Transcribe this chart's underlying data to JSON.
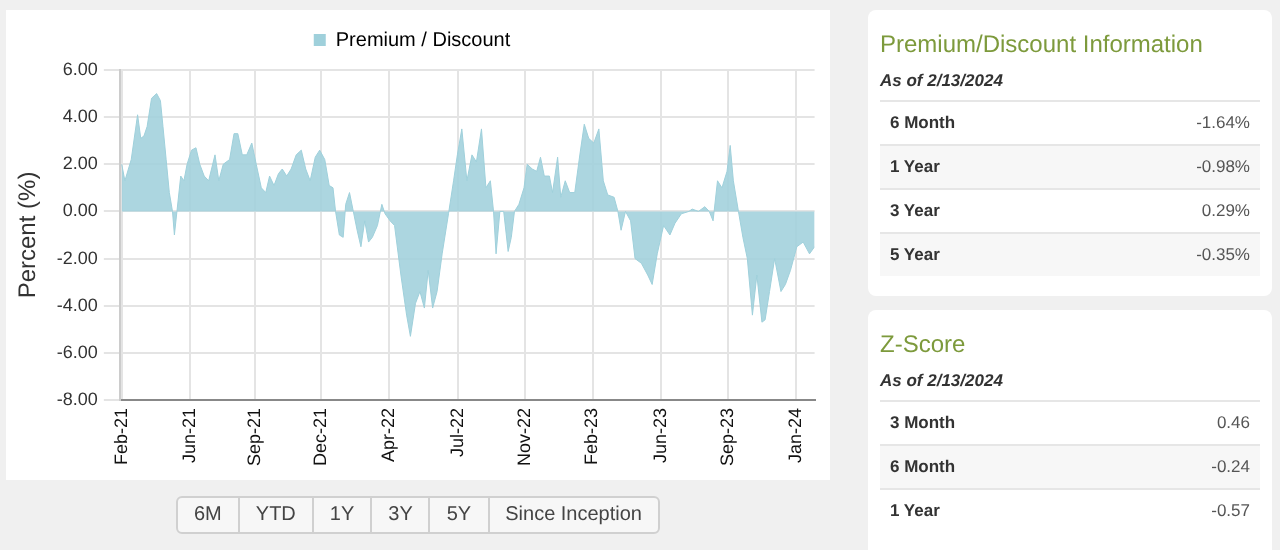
{
  "chart_data": [
    {
      "type": "area",
      "ylabel": "Percent (%)",
      "legend": "top",
      "grid": true,
      "marker": "none",
      "xlim": [
        "2021-02-13",
        "2024-02-13"
      ],
      "xticks": [
        {
          "value": "2021-02-16",
          "label": "Feb-21"
        },
        {
          "value": "2021-06-04",
          "label": "Jun-21"
        },
        {
          "value": "2021-09-14",
          "label": "Sep-21"
        },
        {
          "value": "2021-12-27",
          "label": "Dec-21"
        },
        {
          "value": "2022-04-14",
          "label": "Apr-22"
        },
        {
          "value": "2022-07-31",
          "label": "Jul-22"
        },
        {
          "value": "2022-11-13",
          "label": "Nov-22"
        },
        {
          "value": "2023-02-28",
          "label": "Feb-23"
        },
        {
          "value": "2023-06-16",
          "label": "Jun-23"
        },
        {
          "value": "2023-09-29",
          "label": "Sep-23"
        },
        {
          "value": "2024-01-15",
          "label": "Jan-24"
        }
      ],
      "ylim": [
        -8,
        6
      ],
      "yticks": [
        {
          "value": -8,
          "label": "-8.00"
        },
        {
          "value": -6,
          "label": "-6.00"
        },
        {
          "value": -4,
          "label": "-4.00"
        },
        {
          "value": -2,
          "label": "-2.00"
        },
        {
          "value": 0,
          "label": "0.00"
        },
        {
          "value": 2,
          "label": "2.00"
        },
        {
          "value": 4,
          "label": "4.00"
        },
        {
          "value": 6,
          "label": "6.00"
        }
      ],
      "x": [
        "2021-02-16",
        "2021-02-21",
        "2021-03-03",
        "2021-03-13",
        "2021-03-18",
        "2021-03-23",
        "2021-03-28",
        "2021-04-04",
        "2021-04-12",
        "2021-04-18",
        "2021-04-22",
        "2021-04-27",
        "2021-05-02",
        "2021-05-07",
        "2021-05-10",
        "2021-05-14",
        "2021-05-20",
        "2021-05-25",
        "2021-05-30",
        "2021-06-06",
        "2021-06-13",
        "2021-06-19",
        "2021-06-26",
        "2021-07-03",
        "2021-07-13",
        "2021-07-19",
        "2021-07-26",
        "2021-08-05",
        "2021-08-12",
        "2021-08-18",
        "2021-08-25",
        "2021-09-01",
        "2021-09-09",
        "2021-09-16",
        "2021-09-24",
        "2021-10-01",
        "2021-10-07",
        "2021-10-14",
        "2021-10-21",
        "2021-10-27",
        "2021-11-03",
        "2021-11-10",
        "2021-11-18",
        "2021-11-26",
        "2021-12-03",
        "2021-12-10",
        "2021-12-18",
        "2021-12-25",
        "2022-01-02",
        "2022-01-09",
        "2022-01-15",
        "2022-01-19",
        "2022-01-25",
        "2022-01-31",
        "2022-02-04",
        "2022-02-10",
        "2022-02-16",
        "2022-02-22",
        "2022-02-28",
        "2022-03-06",
        "2022-03-12",
        "2022-03-18",
        "2022-03-26",
        "2022-04-02",
        "2022-04-07",
        "2022-04-15",
        "2022-04-22",
        "2022-05-02",
        "2022-05-11",
        "2022-05-17",
        "2022-05-25",
        "2022-06-01",
        "2022-06-08",
        "2022-06-14",
        "2022-06-21",
        "2022-06-28",
        "2022-07-06",
        "2022-07-16",
        "2022-07-24",
        "2022-07-30",
        "2022-08-06",
        "2022-08-14",
        "2022-08-22",
        "2022-08-29",
        "2022-09-06",
        "2022-09-13",
        "2022-09-20",
        "2022-09-25",
        "2022-09-29",
        "2022-10-05",
        "2022-10-11",
        "2022-10-18",
        "2022-10-23",
        "2022-10-28",
        "2022-11-04",
        "2022-11-12",
        "2022-11-17",
        "2022-11-25",
        "2022-12-02",
        "2022-12-08",
        "2022-12-14",
        "2022-12-22",
        "2022-12-27",
        "2023-01-04",
        "2023-01-09",
        "2023-01-16",
        "2023-01-23",
        "2023-01-31",
        "2023-02-08",
        "2023-02-15",
        "2023-02-22",
        "2023-03-02",
        "2023-03-10",
        "2023-03-17",
        "2023-03-24",
        "2023-04-03",
        "2023-04-09",
        "2023-04-14",
        "2023-04-21",
        "2023-04-29",
        "2023-05-06",
        "2023-05-16",
        "2023-05-26",
        "2023-06-02",
        "2023-06-10",
        "2023-06-20",
        "2023-06-30",
        "2023-07-08",
        "2023-07-18",
        "2023-07-30",
        "2023-08-04",
        "2023-08-14",
        "2023-08-24",
        "2023-08-31",
        "2023-09-06",
        "2023-09-13",
        "2023-09-20",
        "2023-09-28",
        "2023-10-03",
        "2023-10-08",
        "2023-10-16",
        "2023-10-23",
        "2023-10-30",
        "2023-11-07",
        "2023-11-14",
        "2023-11-22",
        "2023-11-27",
        "2023-12-04",
        "2023-12-12",
        "2023-12-22",
        "2023-12-29",
        "2024-01-06",
        "2024-01-16",
        "2024-01-26",
        "2024-02-05",
        "2024-02-13"
      ],
      "series": [
        {
          "name": "Premium / Discount",
          "color": "#9fd0db",
          "values": [
            2.0,
            1.3,
            2.2,
            4.1,
            3.1,
            3.2,
            3.6,
            4.8,
            5.0,
            4.7,
            3.6,
            2.2,
            0.8,
            0,
            -1.0,
            0,
            1.5,
            1.3,
            2.0,
            2.6,
            2.7,
            2.0,
            1.5,
            1.3,
            2.4,
            1.3,
            2.0,
            2.2,
            3.3,
            3.3,
            2.4,
            2.4,
            2.9,
            2.0,
            1.0,
            0.8,
            1.5,
            1.1,
            1.6,
            1.8,
            1.5,
            1.8,
            2.4,
            2.6,
            1.8,
            1.3,
            2.3,
            2.6,
            2.2,
            1.1,
            1.0,
            0,
            -1.0,
            -1.1,
            0.3,
            0.8,
            0,
            -0.8,
            -1.5,
            -0.4,
            -1.3,
            -1.1,
            -0.6,
            0.3,
            -0.1,
            -0.4,
            -0.6,
            -2.7,
            -4.4,
            -5.3,
            -3.9,
            -3.4,
            -4.1,
            -2.5,
            -4.1,
            -3.4,
            -1.8,
            -0.1,
            1.3,
            2.4,
            3.5,
            1.3,
            2.4,
            2.1,
            3.5,
            1.0,
            1.3,
            0,
            -1.8,
            0,
            0,
            -1.7,
            -1.1,
            0,
            0.3,
            1.0,
            2.0,
            1.8,
            1.7,
            2.3,
            1.5,
            1.5,
            0.8,
            2.3,
            0.6,
            1.3,
            0.8,
            0.8,
            2.4,
            3.7,
            3.1,
            2.9,
            3.5,
            1.3,
            0.7,
            0.6,
            0,
            -0.8,
            0,
            -0.4,
            -2.0,
            -2.2,
            -2.7,
            -3.1,
            -1.8,
            -0.6,
            -1.0,
            -0.5,
            -0.1,
            0,
            0.1,
            0,
            0.2,
            0,
            -0.4,
            1.3,
            1.0,
            1.7,
            2.8,
            1.3,
            0,
            -1.1,
            -2.0,
            -4.4,
            -2.7,
            -4.7,
            -4.6,
            -3.4,
            -2.0,
            -3.4,
            -3.1,
            -2.5,
            -1.5,
            -1.3,
            -1.8,
            -1.5
          ]
        }
      ],
      "annotations": [
        "6M",
        "YTD",
        "1Y",
        "3Y",
        "5Y",
        "Since Inception"
      ]
    },
    {
      "type": "other",
      "title": "Premium/Discount Information",
      "subtitle": "As of 2/13/2024",
      "categories": [
        "6 Month",
        "1 Year",
        "3 Year",
        "5 Year"
      ],
      "value_labels": [
        "-1.64%",
        "-0.98%",
        "0.29%",
        "-0.35%"
      ]
    },
    {
      "type": "other",
      "title": "Z-Score",
      "subtitle": "As of 2/13/2024",
      "categories": [
        "3 Month",
        "6 Month",
        "1 Year"
      ],
      "value_labels": [
        "0.46",
        "-0.24",
        "-0.57"
      ]
    }
  ]
}
